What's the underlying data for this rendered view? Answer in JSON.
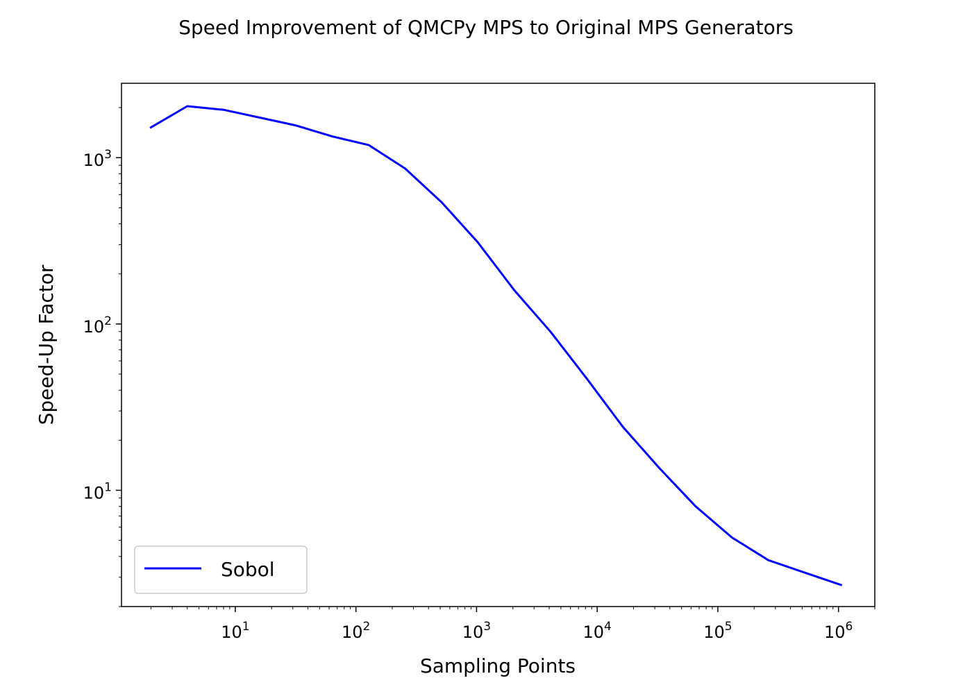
{
  "chart_data": {
    "type": "line",
    "title": "Speed Improvement of QMCPy MPS to Original MPS Generators",
    "xlabel": "Sampling Points",
    "ylabel": "Speed-Up Factor",
    "xscale": "log",
    "yscale": "log",
    "xlim": [
      1.14,
      2000000
    ],
    "ylim": [
      2.0,
      2800
    ],
    "x_ticks": [
      {
        "value": 10,
        "base": "10",
        "exp": "1"
      },
      {
        "value": 100,
        "base": "10",
        "exp": "2"
      },
      {
        "value": 1000,
        "base": "10",
        "exp": "3"
      },
      {
        "value": 10000,
        "base": "10",
        "exp": "4"
      },
      {
        "value": 100000,
        "base": "10",
        "exp": "5"
      },
      {
        "value": 1000000,
        "base": "10",
        "exp": "6"
      }
    ],
    "y_ticks": [
      {
        "value": 10,
        "base": "10",
        "exp": "1"
      },
      {
        "value": 100,
        "base": "10",
        "exp": "2"
      },
      {
        "value": 1000,
        "base": "10",
        "exp": "3"
      }
    ],
    "grid": false,
    "legend": "lower-left",
    "series": [
      {
        "name": "Sobol",
        "color": "#0000ff",
        "x": [
          2,
          4,
          8,
          16,
          32,
          64,
          128,
          256,
          512,
          1024,
          2048,
          4096,
          8192,
          16384,
          32768,
          65536,
          131072,
          262144,
          524288,
          1048576
        ],
        "y": [
          1520,
          2040,
          1940,
          1740,
          1560,
          1340,
          1190,
          860,
          540,
          310,
          160,
          90,
          47,
          24,
          13.6,
          8.0,
          5.2,
          3.8,
          3.2,
          2.7
        ]
      }
    ]
  }
}
